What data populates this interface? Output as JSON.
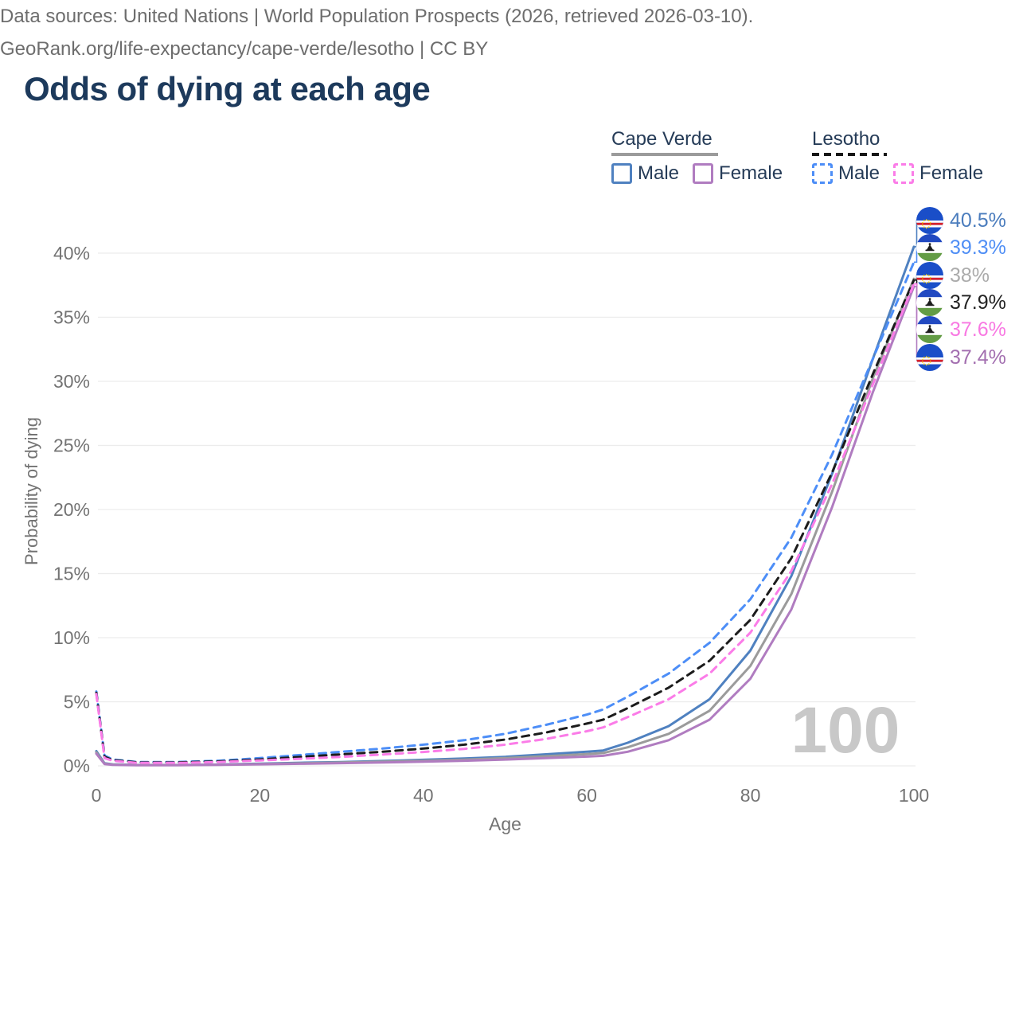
{
  "title": "Odds of dying at each age",
  "legend": {
    "groups": [
      {
        "country": "Cape Verde",
        "line_style": "solid",
        "underline_color": "#9b9b9b",
        "items": [
          {
            "label": "Male",
            "color": "#4f81c0",
            "dashed": false
          },
          {
            "label": "Female",
            "color": "#b07cc0",
            "dashed": false
          }
        ]
      },
      {
        "country": "Lesotho",
        "line_style": "dashed",
        "underline_color": "#161616",
        "items": [
          {
            "label": "Male",
            "color": "#4d8ef7",
            "dashed": true
          },
          {
            "label": "Female",
            "color": "#fb7ce8",
            "dashed": true
          }
        ]
      }
    ]
  },
  "colors": {
    "title_text": "#1d3a5c",
    "legend_text": "#253b57",
    "axis_text": "#737373",
    "gridline": "#ececec",
    "watermark": "#c8c8c8",
    "footer_text": "#6d6d6d",
    "flags": {
      "cape_verde": {
        "blue": "#1a4ec8",
        "red": "#d8222c",
        "white": "#ffffff",
        "yellow": "#f7d116"
      },
      "lesotho": {
        "blue": "#2149c1",
        "white": "#ffffff",
        "green": "#639c45",
        "black": "#1c1c1c"
      }
    }
  },
  "chart_data": {
    "type": "line",
    "title": "Odds of dying at each age",
    "xlabel": "Age",
    "ylabel": "Probability of dying",
    "xlim": [
      0,
      100
    ],
    "ylim": [
      0,
      42
    ],
    "x_ticks": [
      0,
      20,
      40,
      60,
      80,
      100
    ],
    "y_ticks_percent": [
      0,
      5,
      10,
      15,
      20,
      25,
      30,
      35,
      40
    ],
    "grid": "horizontal-only",
    "legend_position": "top-right",
    "watermark": "100",
    "x": [
      0,
      1,
      2,
      5,
      10,
      15,
      20,
      25,
      30,
      35,
      40,
      45,
      50,
      55,
      60,
      62,
      65,
      70,
      75,
      80,
      85,
      90,
      95,
      100
    ],
    "series": [
      {
        "key": "cape-verde-male",
        "name": "Cape Verde Male",
        "color": "#4f81c0",
        "dashed": false,
        "values": [
          1.15,
          0.2,
          0.12,
          0.07,
          0.07,
          0.1,
          0.17,
          0.24,
          0.3,
          0.38,
          0.47,
          0.57,
          0.7,
          0.9,
          1.1,
          1.2,
          1.8,
          3.1,
          5.2,
          9.0,
          14.8,
          22.8,
          31.8,
          40.5
        ]
      },
      {
        "key": "cape-verde-all",
        "name": "Cape Verde (all)",
        "color": "#9b9b9b",
        "dashed": false,
        "values": [
          1.05,
          0.17,
          0.1,
          0.06,
          0.06,
          0.09,
          0.14,
          0.2,
          0.26,
          0.32,
          0.4,
          0.48,
          0.6,
          0.75,
          0.92,
          1.0,
          1.45,
          2.5,
          4.3,
          7.8,
          13.4,
          21.4,
          30.3,
          38.0
        ]
      },
      {
        "key": "cape-verde-female",
        "name": "Cape Verde Female",
        "color": "#b07cc0",
        "dashed": false,
        "values": [
          0.95,
          0.14,
          0.08,
          0.05,
          0.05,
          0.08,
          0.12,
          0.16,
          0.21,
          0.26,
          0.33,
          0.4,
          0.49,
          0.6,
          0.72,
          0.78,
          1.1,
          2.0,
          3.6,
          6.8,
          12.2,
          20.2,
          29.2,
          37.4
        ]
      },
      {
        "key": "lesotho-male",
        "name": "Lesotho Male",
        "color": "#4d8ef7",
        "dashed": true,
        "values": [
          5.8,
          0.8,
          0.5,
          0.3,
          0.3,
          0.4,
          0.6,
          0.85,
          1.1,
          1.35,
          1.65,
          2.0,
          2.5,
          3.2,
          4.0,
          4.4,
          5.4,
          7.2,
          9.6,
          13.0,
          17.8,
          24.3,
          31.8,
          39.3
        ]
      },
      {
        "key": "lesotho-all",
        "name": "Lesotho (all)",
        "color": "#1c1c1c",
        "dashed": true,
        "values": [
          5.7,
          0.7,
          0.45,
          0.27,
          0.27,
          0.35,
          0.5,
          0.7,
          0.9,
          1.1,
          1.35,
          1.65,
          2.05,
          2.6,
          3.3,
          3.6,
          4.5,
          6.1,
          8.2,
          11.4,
          16.2,
          22.9,
          30.6,
          37.9
        ]
      },
      {
        "key": "lesotho-female",
        "name": "Lesotho Female",
        "color": "#fb7ce8",
        "dashed": true,
        "values": [
          5.6,
          0.6,
          0.4,
          0.23,
          0.23,
          0.3,
          0.42,
          0.55,
          0.7,
          0.88,
          1.08,
          1.32,
          1.65,
          2.1,
          2.7,
          3.0,
          3.8,
          5.2,
          7.2,
          10.4,
          15.2,
          22.0,
          29.8,
          37.6
        ]
      }
    ],
    "end_labels": [
      {
        "series": "cape-verde-male",
        "flag": "cape-verde",
        "value": "40.5%",
        "color": "#4a7cbd"
      },
      {
        "series": "lesotho-male",
        "flag": "lesotho",
        "value": "39.3%",
        "color": "#4f8ef5"
      },
      {
        "series": "cape-verde-all",
        "flag": "cape-verde",
        "value": "38%",
        "color": "#ababab"
      },
      {
        "series": "lesotho-all",
        "flag": "lesotho",
        "value": "37.9%",
        "color": "#222222"
      },
      {
        "series": "lesotho-female",
        "flag": "lesotho",
        "value": "37.6%",
        "color": "#f878e2"
      },
      {
        "series": "cape-verde-female",
        "flag": "cape-verde",
        "value": "37.4%",
        "color": "#a36fb0"
      }
    ]
  },
  "footer": {
    "line1": "Data sources: United Nations | World Population Prospects (2026, retrieved 2026-03-10).",
    "line2": "GeoRank.org/life-expectancy/cape-verde/lesotho | CC BY"
  }
}
